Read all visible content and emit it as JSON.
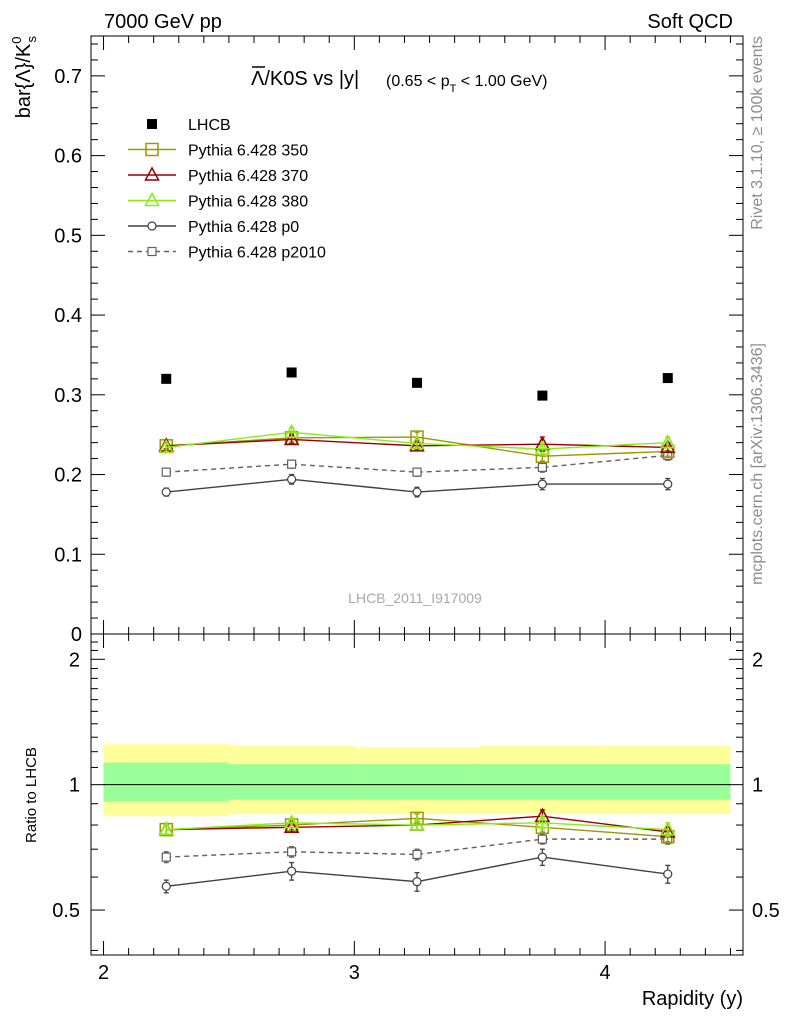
{
  "header": {
    "left": "7000 GeV pp",
    "right": "Soft QCD"
  },
  "side_labels": {
    "rivet": "Rivet 3.1.10, ≥ 100k events",
    "mcplots": "mcplots.cern.ch [arXiv:1306.3436]"
  },
  "watermark": "LHCB_2011_I917009",
  "title": {
    "main": "Λ/K0S vs |y|",
    "cut_open": "(0.65 < p",
    "cut_sub": "T",
    "cut_close": " < 1.00 GeV)"
  },
  "ylabel_top": {
    "base": "bar{Λ}/K",
    "sup": "0",
    "sub": "s"
  },
  "ylabel_bottom": "Ratio to LHCB",
  "xlabel": "Rapidity (y)",
  "colors": {
    "data": "#000000",
    "p350": "#999900",
    "p370": "#990000",
    "p380": "#88ee11",
    "p0": "#404040",
    "p2010": "#606060",
    "band_outer": "#ffff99",
    "band_inner": "#99ff99"
  },
  "chart_data": [
    {
      "type": "scatter",
      "panel": "main",
      "x": [
        2.25,
        2.75,
        3.25,
        3.75,
        4.25
      ],
      "xlim": [
        1.95,
        4.55
      ],
      "ylim": [
        0,
        0.75
      ],
      "yticks": [
        "0",
        "0.1",
        "0.2",
        "0.3",
        "0.4",
        "0.5",
        "0.6",
        "0.7"
      ],
      "series": [
        {
          "name": "LHCB",
          "key": "data",
          "marker": "filled-square",
          "values": [
            0.32,
            0.328,
            0.315,
            0.299,
            0.321
          ]
        },
        {
          "name": "Pythia 6.428 350",
          "key": "p350",
          "marker": "open-square",
          "line": "solid",
          "values": [
            0.236,
            0.246,
            0.247,
            0.223,
            0.229
          ],
          "err": [
            0.004,
            0.005,
            0.006,
            0.006,
            0.006
          ]
        },
        {
          "name": "Pythia 6.428 370",
          "key": "p370",
          "marker": "open-triangle",
          "line": "solid",
          "values": [
            0.236,
            0.244,
            0.236,
            0.238,
            0.234
          ],
          "err": [
            0.004,
            0.005,
            0.005,
            0.009,
            0.006
          ]
        },
        {
          "name": "Pythia 6.428 380",
          "key": "p380",
          "marker": "open-triangle",
          "line": "solid",
          "values": [
            0.234,
            0.253,
            0.239,
            0.232,
            0.24
          ],
          "err": [
            0.005,
            0.006,
            0.005,
            0.007,
            0.007
          ]
        },
        {
          "name": "Pythia 6.428 p0",
          "key": "p0",
          "marker": "open-circle",
          "line": "solid",
          "values": [
            0.178,
            0.194,
            0.178,
            0.188,
            0.188
          ],
          "err": [
            0.005,
            0.006,
            0.006,
            0.007,
            0.007
          ]
        },
        {
          "name": "Pythia 6.428 p2010",
          "key": "p2010",
          "marker": "open-small-square",
          "line": "dashed",
          "values": [
            0.203,
            0.213,
            0.203,
            0.209,
            0.224
          ],
          "err": [
            0.005,
            0.005,
            0.005,
            0.006,
            0.006
          ]
        }
      ]
    },
    {
      "type": "scatter",
      "panel": "ratio",
      "ylabel": "Ratio to LHCB",
      "xlabel": "Rapidity (y)",
      "xlim": [
        1.95,
        4.55
      ],
      "ylim": [
        0.39,
        2.3
      ],
      "log_y": true,
      "xticks": [
        "2",
        "3",
        "4"
      ],
      "yticks": [
        "0.5",
        "1",
        "2"
      ],
      "bands": {
        "edges": [
          2.0,
          2.5,
          3.0,
          3.5,
          4.0,
          4.5
        ],
        "outer": [
          [
            0.84,
            1.25
          ],
          [
            0.85,
            1.24
          ],
          [
            0.85,
            1.23
          ],
          [
            0.85,
            1.24
          ],
          [
            0.85,
            1.24
          ]
        ],
        "inner": [
          [
            0.91,
            1.13
          ],
          [
            0.92,
            1.12
          ],
          [
            0.92,
            1.12
          ],
          [
            0.92,
            1.12
          ],
          [
            0.92,
            1.12
          ]
        ]
      },
      "x": [
        2.25,
        2.75,
        3.25,
        3.75,
        4.25
      ],
      "series": [
        {
          "name": "Pythia 6.428 350",
          "key": "p350",
          "marker": "open-square",
          "line": "solid",
          "values": [
            0.78,
            0.8,
            0.83,
            0.79,
            0.75
          ],
          "err": [
            0.02,
            0.02,
            0.02,
            0.02,
            0.02
          ]
        },
        {
          "name": "Pythia 6.428 370",
          "key": "p370",
          "marker": "open-triangle",
          "line": "solid",
          "values": [
            0.78,
            0.79,
            0.8,
            0.84,
            0.77
          ],
          "err": [
            0.02,
            0.02,
            0.02,
            0.03,
            0.02
          ]
        },
        {
          "name": "Pythia 6.428 380",
          "key": "p380",
          "marker": "open-triangle",
          "line": "solid",
          "values": [
            0.78,
            0.81,
            0.8,
            0.81,
            0.78
          ],
          "err": [
            0.02,
            0.02,
            0.02,
            0.03,
            0.03
          ]
        },
        {
          "name": "Pythia 6.428 p0",
          "key": "p0",
          "marker": "open-circle",
          "line": "solid",
          "values": [
            0.57,
            0.62,
            0.585,
            0.67,
            0.61
          ],
          "err": [
            0.02,
            0.03,
            0.03,
            0.03,
            0.03
          ]
        },
        {
          "name": "Pythia 6.428 p2010",
          "key": "p2010",
          "marker": "open-small-square",
          "line": "dashed",
          "values": [
            0.67,
            0.69,
            0.68,
            0.74,
            0.74
          ],
          "err": [
            0.02,
            0.02,
            0.02,
            0.02,
            0.02
          ]
        }
      ]
    }
  ]
}
